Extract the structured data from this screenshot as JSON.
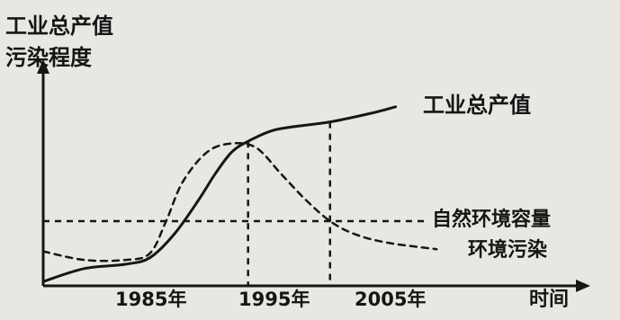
{
  "chart_data": {
    "type": "line",
    "title": "",
    "ylabel": [
      "工业总产值",
      "污染程度"
    ],
    "xlabel": "时间",
    "x_ticks": [
      "1985年",
      "1995年",
      "2005年"
    ],
    "x_range": [
      1970,
      2035
    ],
    "y_range": [
      0,
      100
    ],
    "grid": false,
    "series": [
      {
        "name": "工业总产值",
        "style": "solid",
        "points": [
          [
            1970,
            2
          ],
          [
            1975,
            8
          ],
          [
            1980,
            10
          ],
          [
            1983,
            13
          ],
          [
            1986,
            24
          ],
          [
            1989,
            40
          ],
          [
            1991,
            52
          ],
          [
            1993,
            62
          ],
          [
            1995,
            67
          ],
          [
            1998,
            72
          ],
          [
            2001,
            74
          ],
          [
            2005,
            76
          ],
          [
            2010,
            80
          ],
          [
            2013,
            83
          ]
        ]
      },
      {
        "name": "环境污染",
        "style": "dashed",
        "points": [
          [
            1970,
            16
          ],
          [
            1975,
            12
          ],
          [
            1980,
            12
          ],
          [
            1983,
            15
          ],
          [
            1985,
            30
          ],
          [
            1987,
            48
          ],
          [
            1990,
            62
          ],
          [
            1993,
            66
          ],
          [
            1996,
            64
          ],
          [
            1999,
            52
          ],
          [
            2002,
            40
          ],
          [
            2005,
            30
          ],
          [
            2008,
            24
          ],
          [
            2012,
            20
          ],
          [
            2018,
            17
          ]
        ]
      }
    ],
    "reference_lines": [
      {
        "name": "自然环境容量",
        "orientation": "horizontal",
        "y": 30,
        "style": "dashed"
      }
    ],
    "guide_lines": [
      {
        "x": 1995,
        "style": "dashed"
      },
      {
        "x": 2005,
        "style": "dashed"
      }
    ],
    "colors": {
      "line": "#161616",
      "background": "#e9e7e2"
    }
  }
}
